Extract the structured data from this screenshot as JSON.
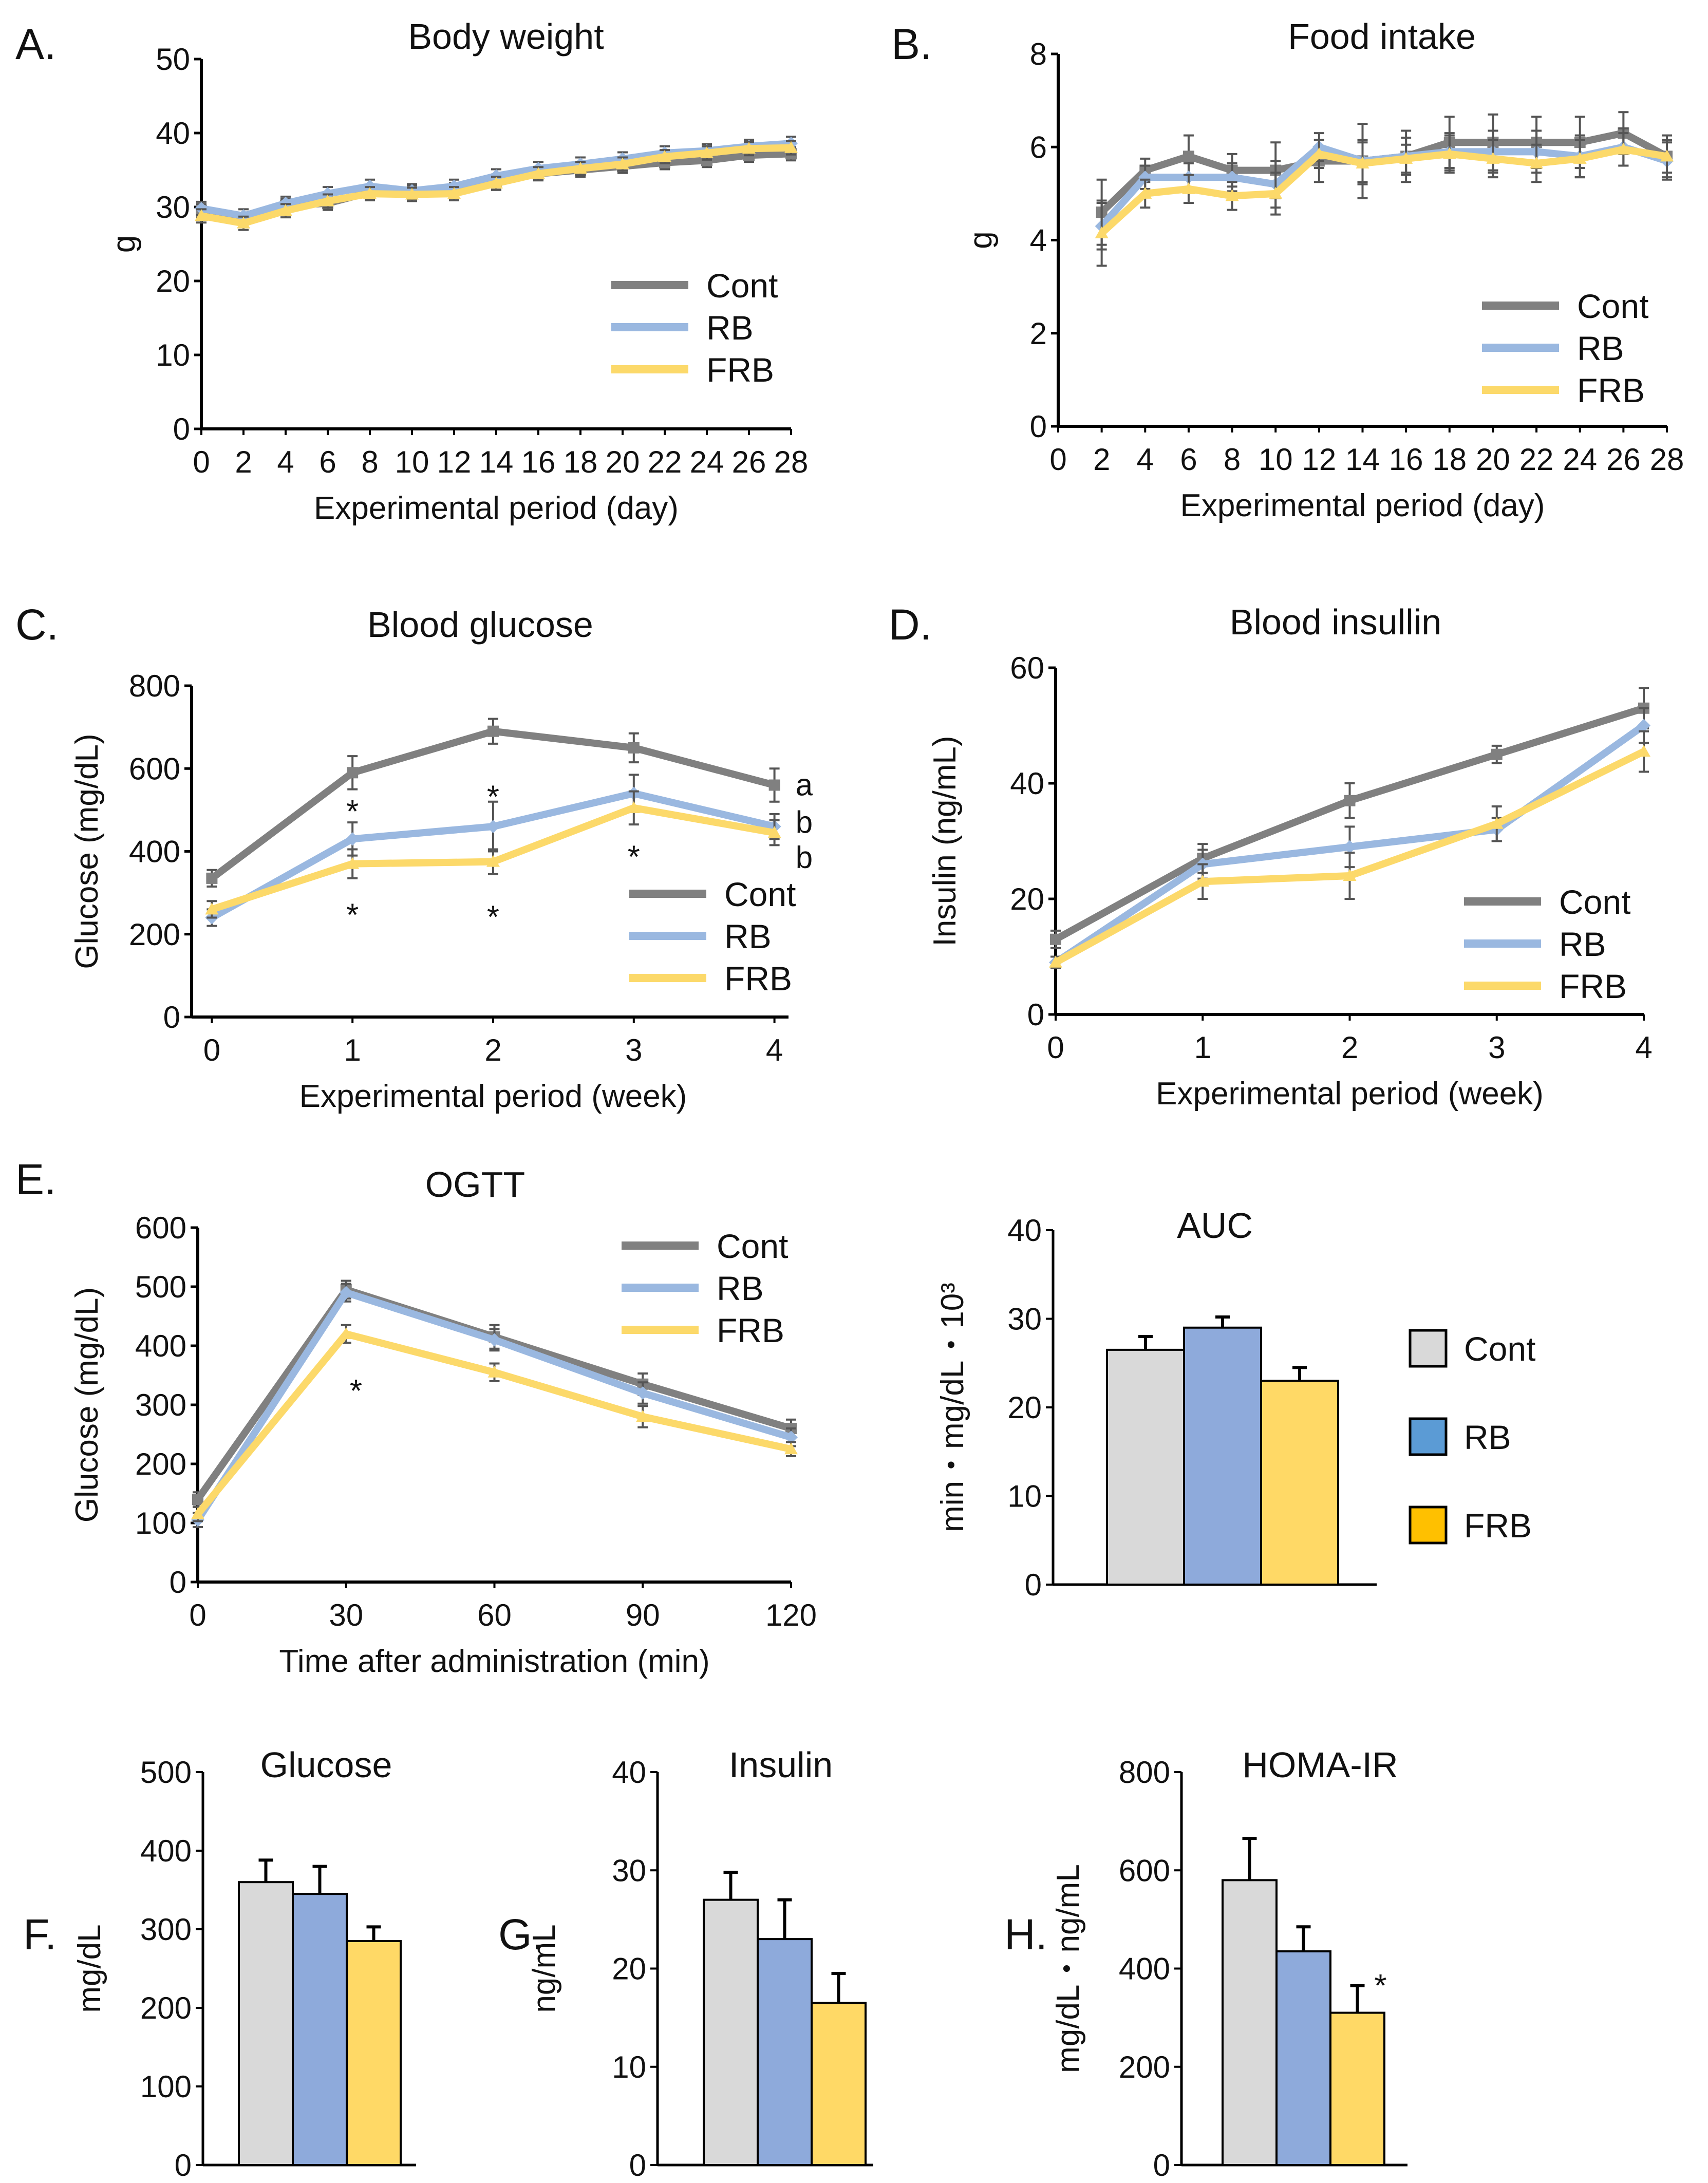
{
  "colors": {
    "Cont": "#808080",
    "RB": "#9ab8e0",
    "FRB": "#fcd96a",
    "bar_Cont": "#d9d9d9",
    "bar_RB": "#8eaadb",
    "bar_FRB": "#ffd966",
    "axis": "#000000",
    "error": "#555555"
  },
  "legend": {
    "labels": [
      "Cont",
      "RB",
      "FRB"
    ]
  },
  "chart_data": [
    {
      "id": "A",
      "type": "line",
      "panel_label": "A.",
      "title": "Body weight",
      "xlabel": "Experimental period (day)",
      "ylabel": "g",
      "x": [
        0,
        2,
        4,
        6,
        8,
        10,
        12,
        14,
        16,
        18,
        20,
        22,
        24,
        26,
        28
      ],
      "x_tick_labels": [
        "0",
        "2",
        "4",
        "6",
        "8",
        "10",
        "12",
        "14",
        "16",
        "18",
        "20",
        "22",
        "24",
        "26",
        "28"
      ],
      "xlim": [
        0,
        28
      ],
      "ylim": [
        0,
        50
      ],
      "y_ticks": [
        0,
        10,
        20,
        30,
        40,
        50
      ],
      "series": [
        {
          "name": "Cont",
          "values": [
            29.5,
            28.3,
            30.2,
            30.5,
            32.0,
            32.0,
            32.3,
            33.5,
            34.5,
            35.0,
            35.5,
            36.0,
            36.3,
            37.0,
            37.2
          ],
          "errors": [
            0.9,
            0.9,
            0.9,
            0.9,
            0.9,
            0.9,
            0.9,
            0.9,
            0.9,
            0.9,
            0.9,
            0.9,
            0.9,
            0.9,
            0.9
          ]
        },
        {
          "name": "RB",
          "values": [
            29.8,
            28.8,
            30.5,
            31.8,
            32.8,
            32.2,
            32.8,
            34.2,
            35.2,
            35.8,
            36.5,
            37.3,
            37.6,
            38.2,
            38.6
          ],
          "errors": [
            0.9,
            0.9,
            0.9,
            0.9,
            0.9,
            0.9,
            0.9,
            0.9,
            0.9,
            0.9,
            0.9,
            0.9,
            0.9,
            0.9,
            0.9
          ]
        },
        {
          "name": "FRB",
          "values": [
            28.8,
            27.8,
            29.5,
            30.8,
            31.8,
            31.7,
            31.8,
            33.2,
            34.5,
            35.2,
            35.8,
            36.8,
            37.3,
            37.9,
            38.0
          ],
          "errors": [
            0.9,
            0.9,
            0.9,
            0.9,
            0.9,
            0.9,
            0.9,
            0.9,
            0.9,
            0.9,
            0.9,
            0.9,
            0.9,
            0.9,
            0.9
          ]
        }
      ],
      "legend_position": "bottom-right"
    },
    {
      "id": "B",
      "type": "line",
      "panel_label": "B.",
      "title": "Food intake",
      "xlabel": "Experimental period (day)",
      "ylabel": "g",
      "x": [
        2,
        4,
        6,
        8,
        10,
        12,
        14,
        16,
        18,
        20,
        22,
        24,
        26,
        28
      ],
      "x_tick_labels": [
        "0",
        "2",
        "4",
        "6",
        "8",
        "10",
        "12",
        "14",
        "16",
        "18",
        "20",
        "22",
        "24",
        "26",
        "28"
      ],
      "x_tick_values": [
        0,
        2,
        4,
        6,
        8,
        10,
        12,
        14,
        16,
        18,
        20,
        22,
        24,
        26,
        28
      ],
      "xlim": [
        0,
        28
      ],
      "ylim": [
        0,
        8
      ],
      "y_ticks": [
        0,
        2,
        4,
        6,
        8
      ],
      "series": [
        {
          "name": "Cont",
          "values": [
            4.6,
            5.5,
            5.8,
            5.5,
            5.5,
            5.7,
            5.7,
            5.8,
            6.1,
            6.1,
            6.1,
            6.1,
            6.3,
            5.8
          ],
          "errors": [
            0.7,
            0.25,
            0.45,
            0.35,
            0.6,
            0.45,
            0.8,
            0.55,
            0.55,
            0.6,
            0.55,
            0.55,
            0.45,
            0.45
          ]
        },
        {
          "name": "RB",
          "values": [
            4.3,
            5.35,
            5.35,
            5.35,
            5.2,
            6.0,
            5.7,
            5.8,
            5.9,
            5.9,
            5.9,
            5.8,
            6.0,
            5.7
          ],
          "errors": [
            0.5,
            0.25,
            0.3,
            0.3,
            0.5,
            0.3,
            0.45,
            0.4,
            0.4,
            0.45,
            0.45,
            0.45,
            0.4,
            0.4
          ]
        },
        {
          "name": "FRB",
          "values": [
            4.15,
            5.0,
            5.1,
            4.95,
            5.0,
            5.85,
            5.65,
            5.75,
            5.85,
            5.75,
            5.65,
            5.75,
            5.95,
            5.8
          ],
          "errors": [
            0.7,
            0.3,
            0.3,
            0.3,
            0.45,
            0.3,
            0.45,
            0.3,
            0.4,
            0.4,
            0.4,
            0.4,
            0.35,
            0.35
          ]
        }
      ],
      "legend_position": "bottom-right"
    },
    {
      "id": "C",
      "type": "line",
      "panel_label": "C.",
      "title": "Blood glucose",
      "xlabel": "Experimental period (week)",
      "ylabel": "Glucose (mg/dL)",
      "x": [
        0,
        1,
        2,
        3,
        4
      ],
      "x_tick_labels": [
        "0",
        "1",
        "2",
        "3",
        "4"
      ],
      "xlim": [
        -0.1,
        4.1
      ],
      "ylim": [
        0,
        800
      ],
      "y_ticks": [
        0,
        200,
        400,
        600,
        800
      ],
      "series": [
        {
          "name": "Cont",
          "values": [
            335,
            590,
            690,
            650,
            560
          ],
          "errors": [
            20,
            40,
            30,
            35,
            40
          ]
        },
        {
          "name": "RB",
          "values": [
            240,
            430,
            460,
            540,
            460
          ],
          "errors": [
            20,
            40,
            60,
            45,
            30
          ]
        },
        {
          "name": "FRB",
          "values": [
            260,
            370,
            375,
            505,
            445
          ],
          "errors": [
            20,
            35,
            30,
            40,
            30
          ]
        }
      ],
      "annotations": [
        {
          "text": "*",
          "x": 1,
          "y": 520
        },
        {
          "text": "*",
          "x": 1,
          "y": 270
        },
        {
          "text": "*",
          "x": 2,
          "y": 555
        },
        {
          "text": "*",
          "x": 2,
          "y": 265
        },
        {
          "text": "*",
          "x": 3,
          "y": 410
        },
        {
          "text": "a",
          "x": 4.15,
          "y": 560
        },
        {
          "text": "b",
          "x": 4.15,
          "y": 470
        },
        {
          "text": "b",
          "x": 4.15,
          "y": 385
        }
      ],
      "legend_position": "bottom-right"
    },
    {
      "id": "D",
      "type": "line",
      "panel_label": "D.",
      "title": "Blood insullin",
      "xlabel": "Experimental period (week)",
      "ylabel": "Insulin (ng/mL)",
      "x": [
        0,
        1,
        2,
        3,
        4
      ],
      "x_tick_labels": [
        "0",
        "1",
        "2",
        "3",
        "4"
      ],
      "xlim": [
        0,
        4
      ],
      "ylim": [
        0,
        60
      ],
      "y_ticks": [
        0,
        20,
        40,
        60
      ],
      "series": [
        {
          "name": "Cont",
          "values": [
            13,
            27,
            37,
            45,
            53
          ],
          "errors": [
            1.5,
            2.5,
            3.0,
            1.5,
            3.5
          ]
        },
        {
          "name": "RB",
          "values": [
            9,
            26,
            29,
            32,
            50
          ],
          "errors": [
            1.0,
            2.5,
            3.5,
            2.0,
            3.0
          ]
        },
        {
          "name": "FRB",
          "values": [
            9,
            23,
            24,
            33,
            45.5
          ],
          "errors": [
            1.0,
            3.0,
            4.0,
            3.0,
            3.5
          ]
        }
      ],
      "legend_position": "bottom-right"
    },
    {
      "id": "E1",
      "type": "line",
      "panel_label": "E.",
      "title": "OGTT",
      "xlabel": "Time after administration (min)",
      "ylabel": "Glucose (mg/dL)",
      "x": [
        0,
        30,
        60,
        90,
        120
      ],
      "x_tick_labels": [
        "0",
        "30",
        "60",
        "90",
        "120"
      ],
      "xlim": [
        0,
        120
      ],
      "ylim": [
        0,
        600
      ],
      "y_ticks": [
        0,
        100,
        200,
        300,
        400,
        500,
        600
      ],
      "series": [
        {
          "name": "Cont",
          "values": [
            140,
            495,
            415,
            335,
            260
          ],
          "errors": [
            12,
            15,
            20,
            18,
            15
          ]
        },
        {
          "name": "RB",
          "values": [
            105,
            490,
            410,
            320,
            245
          ],
          "errors": [
            12,
            15,
            18,
            18,
            15
          ]
        },
        {
          "name": "FRB",
          "values": [
            115,
            420,
            355,
            280,
            225
          ],
          "errors": [
            12,
            15,
            15,
            18,
            12
          ]
        }
      ],
      "annotations": [
        {
          "text": "*",
          "x": 32,
          "y": 340
        }
      ],
      "legend_position": "top-right"
    },
    {
      "id": "E2",
      "type": "bar",
      "title": "AUC",
      "ylabel": "min・mg/dL・10³",
      "categories": [
        "Cont",
        "RB",
        "FRB"
      ],
      "values": [
        26.5,
        29,
        23
      ],
      "errors": [
        1.5,
        1.2,
        1.5
      ],
      "ylim": [
        0,
        40
      ],
      "y_ticks": [
        0,
        10,
        20,
        30,
        40
      ],
      "legend_position": "right"
    },
    {
      "id": "F",
      "type": "bar",
      "panel_label": "F.",
      "title": "Glucose",
      "ylabel": "mg/dL",
      "categories": [
        "Cont",
        "RB",
        "FRB"
      ],
      "values": [
        360,
        345,
        285
      ],
      "errors": [
        28,
        35,
        18
      ],
      "ylim": [
        0,
        500
      ],
      "y_ticks": [
        0,
        100,
        200,
        300,
        400,
        500
      ]
    },
    {
      "id": "G",
      "type": "bar",
      "panel_label": "G.",
      "title": "Insulin",
      "ylabel": "ng/mL",
      "categories": [
        "Cont",
        "RB",
        "FRB"
      ],
      "values": [
        27,
        23,
        16.5
      ],
      "errors": [
        2.8,
        4.0,
        3.0
      ],
      "ylim": [
        0,
        40
      ],
      "y_ticks": [
        0,
        10,
        20,
        30,
        40
      ]
    },
    {
      "id": "H",
      "type": "bar",
      "panel_label": "H.",
      "title": "HOMA-IR",
      "ylabel": "mg/dL・ng/mL",
      "categories": [
        "Cont",
        "RB",
        "FRB"
      ],
      "values": [
        580,
        435,
        310
      ],
      "errors": [
        85,
        50,
        55
      ],
      "ylim": [
        0,
        800
      ],
      "y_ticks": [
        0,
        200,
        400,
        600,
        800
      ],
      "annotations": [
        {
          "text": "*",
          "bar": 2,
          "y": 385
        }
      ]
    }
  ]
}
